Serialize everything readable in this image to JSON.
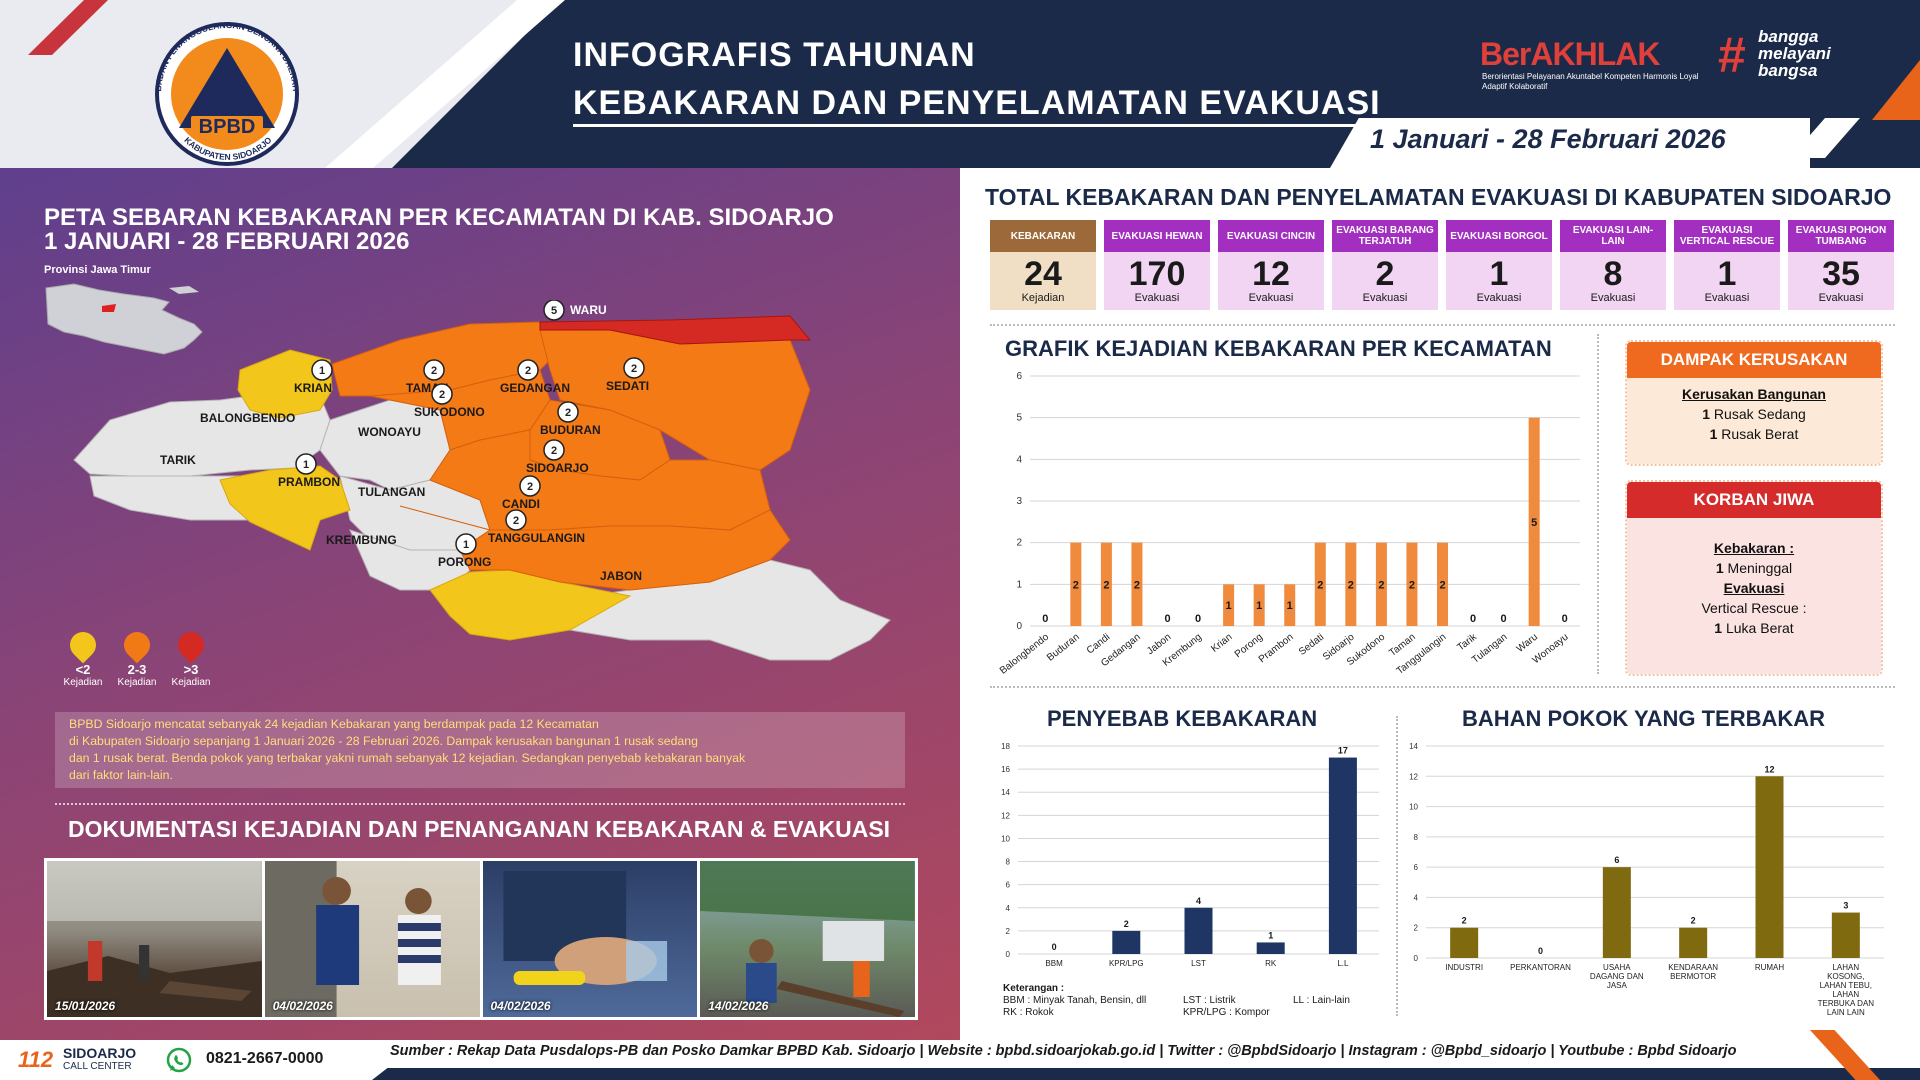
{
  "header": {
    "title_line1": "INFOGRAFIS TAHUNAN",
    "title_line2": "KEBAKARAN DAN PENYELAMATAN EVAKUASI",
    "period": "1 Januari - 28 Februari 2026",
    "logo_text": "BPBD",
    "logo_ring_top": "BADAN PENANGGULANGAN BENCANA DAERAH",
    "logo_ring_bottom": "KABUPATEN SIDOARJO",
    "berakhlak": "BerAKHLAK",
    "berakhlak_sub": "Berorientasi Pelayanan Akuntabel Kompeten Harmonis Loyal Adaptif Kolaboratif",
    "bangga_lines": [
      "bangga",
      "melayani",
      "bangsa"
    ]
  },
  "map_section": {
    "title_line1": "PETA SEBARAN KEBAKARAN PER KECAMATAN DI KAB. SIDOARJO",
    "title_line2": "1 JANUARI - 28 FEBRUARI 2026",
    "province_label": "Provinsi Jawa Timur",
    "legend": [
      {
        "label": "<2",
        "unit": "Kejadian",
        "color": "#f4c61b"
      },
      {
        "label": "2-3",
        "unit": "Kejadian",
        "color": "#f27a16"
      },
      {
        "label": ">3",
        "unit": "Kejadian",
        "color": "#d42a23"
      }
    ],
    "districts": [
      {
        "name": "WARU",
        "count": 5
      },
      {
        "name": "TAMAN",
        "count": 2
      },
      {
        "name": "SEDATI",
        "count": 2
      },
      {
        "name": "GEDANGAN",
        "count": 2
      },
      {
        "name": "SUKODONO",
        "count": 2
      },
      {
        "name": "KRIAN",
        "count": 1
      },
      {
        "name": "BALONGBENDO",
        "count": null
      },
      {
        "name": "WONOAYU",
        "count": null
      },
      {
        "name": "BUDURAN",
        "count": 2
      },
      {
        "name": "TARIK",
        "count": null
      },
      {
        "name": "PRAMBON",
        "count": 1
      },
      {
        "name": "SIDOARJO",
        "count": 2
      },
      {
        "name": "TULANGAN",
        "count": null
      },
      {
        "name": "CANDI",
        "count": 2
      },
      {
        "name": "TANGGULANGIN",
        "count": 2
      },
      {
        "name": "KREMBUNG",
        "count": null
      },
      {
        "name": "PORONG",
        "count": 1
      },
      {
        "name": "JABON",
        "count": null
      }
    ],
    "description": [
      "BPBD Sidoarjo mencatat sebanyak 24 kejadian Kebakaran yang berdampak pada 12 Kecamatan",
      "di Kabupaten Sidoarjo sepanjang 1 Januari 2026 - 28 Februari 2026. Dampak kerusakan bangunan 1 rusak sedang",
      "dan 1 rusak berat. Benda pokok yang terbakar yakni rumah sebanyak 12 kejadian. Sedangkan penyebab kebakaran banyak",
      "dari faktor lain-lain."
    ]
  },
  "documentation": {
    "title": "DOKUMENTASI KEJADIAN DAN PENANGANAN KEBAKARAN & EVAKUASI",
    "photos": [
      {
        "date": "15/01/2026"
      },
      {
        "date": "04/02/2026"
      },
      {
        "date": "04/02/2026"
      },
      {
        "date": "14/02/2026"
      }
    ]
  },
  "totals": {
    "title": "TOTAL KEBAKARAN DAN PENYELAMATAN EVAKUASI  DI KABUPATEN SIDOARJO",
    "cards": [
      {
        "label": "KEBAKARAN",
        "value": "24",
        "unit": "Kejadian",
        "kind": "kebakaran"
      },
      {
        "label": "EVAKUASI HEWAN",
        "value": "170",
        "unit": "Evakuasi",
        "kind": "evakuasi"
      },
      {
        "label": "EVAKUASI CINCIN",
        "value": "12",
        "unit": "Evakuasi",
        "kind": "evakuasi"
      },
      {
        "label": "EVAKUASI BARANG TERJATUH",
        "value": "2",
        "unit": "Evakuasi",
        "kind": "evakuasi"
      },
      {
        "label": "EVAKUASI BORGOL",
        "value": "1",
        "unit": "Evakuasi",
        "kind": "evakuasi"
      },
      {
        "label": "EVAKUASI LAIN-LAIN",
        "value": "8",
        "unit": "Evakuasi",
        "kind": "evakuasi"
      },
      {
        "label": "EVAKUASI VERTICAL RESCUE",
        "value": "1",
        "unit": "Evakuasi",
        "kind": "evakuasi"
      },
      {
        "label": "EVAKUASI POHON TUMBANG",
        "value": "35",
        "unit": "Evakuasi",
        "kind": "evakuasi"
      }
    ]
  },
  "impact": {
    "dampak_title": "DAMPAK KERUSAKAN",
    "dampak_heading": "Kerusakan Bangunan",
    "dampak_lines": [
      {
        "num": "1",
        "text": " Rusak Sedang"
      },
      {
        "num": "1",
        "text": " Rusak Berat"
      }
    ],
    "korban_title": "KORBAN JIWA",
    "korban_heading1": "Kebakaran :",
    "korban_line1_num": "1",
    "korban_line1_text": " Meninggal",
    "korban_heading2": "Evakuasi",
    "korban_line2": "Vertical Rescue :",
    "korban_line3_num": "1",
    "korban_line3_text": " Luka Berat"
  },
  "charts_text": {
    "grafik_title": "GRAFIK KEJADIAN KEBAKARAN PER KECAMATAN",
    "penyebab_title": "PENYEBAB KEBAKARAN",
    "bahan_title": "BAHAN POKOK YANG TERBAKAR",
    "keterangan_title": "Keterangan :",
    "keterangan": [
      {
        "code": "BBM",
        "desc": ": Minyak Tanah, Bensin, dll"
      },
      {
        "code": "RK",
        "desc": ": Rokok"
      },
      {
        "code": "LST",
        "desc": ": Listrik"
      },
      {
        "code": "KPR/LPG",
        "desc": ": Kompor"
      },
      {
        "code": "LL",
        "desc": ": Lain-lain"
      }
    ]
  },
  "chart_data": [
    {
      "type": "bar",
      "title": "GRAFIK KEJADIAN KEBAKARAN PER KECAMATAN",
      "categories": [
        "Balongbendo",
        "Buduran",
        "Candi",
        "Gedangan",
        "Jabon",
        "Krembung",
        "Krian",
        "Porong",
        "Prambon",
        "Sedati",
        "Sidoarjo",
        "Sukodono",
        "Taman",
        "Tanggulangin",
        "Tarik",
        "Tulangan",
        "Waru",
        "Wonoayu"
      ],
      "values": [
        0,
        2,
        2,
        2,
        0,
        0,
        1,
        1,
        1,
        2,
        2,
        2,
        2,
        2,
        0,
        0,
        5,
        0
      ],
      "ylim": [
        0,
        6
      ],
      "yticks": [
        0,
        1,
        2,
        3,
        4,
        5,
        6
      ],
      "color": "#f08a3c",
      "grid": true
    },
    {
      "type": "bar",
      "title": "PENYEBAB KEBAKARAN",
      "categories": [
        "BBM",
        "KPR/LPG",
        "LST",
        "RK",
        "L.L"
      ],
      "values": [
        0,
        2,
        4,
        1,
        17
      ],
      "ylim": [
        0,
        18
      ],
      "yticks": [
        0,
        2,
        4,
        6,
        8,
        10,
        12,
        14,
        16,
        18
      ],
      "color": "#1f3564",
      "grid": true
    },
    {
      "type": "bar",
      "title": "BAHAN POKOK YANG TERBAKAR",
      "categories": [
        [
          "INDUSTRI"
        ],
        [
          "PERKANTORAN"
        ],
        [
          "USAHA",
          "DAGANG DAN",
          "JASA"
        ],
        [
          "KENDARAAN",
          "BERMOTOR"
        ],
        [
          "RUMAH"
        ],
        [
          "LAHAN",
          "KOSONG,",
          "LAHAN TEBU,",
          "LAHAN",
          "TERBUKA DAN",
          "LAIN LAIN"
        ]
      ],
      "values": [
        2,
        0,
        6,
        2,
        12,
        3
      ],
      "ylim": [
        0,
        14
      ],
      "yticks": [
        0,
        2,
        4,
        6,
        8,
        10,
        12,
        14
      ],
      "color": "#7f6a10",
      "grid": true
    }
  ],
  "footer": {
    "cc_number": "112",
    "cc_name": "SIDOARJO",
    "cc_sub": "CALL CENTER",
    "wa_number": "0821-2667-0000",
    "source": "Sumber : Rekap Data Pusdalops-PB dan Posko Damkar BPBD Kab. Sidoarjo | Website : bpbd.sidoarjokab.go.id | Twitter : @BpbdSidoarjo | Instagram : @Bpbd_sidoarjo | Youtbube : Bpbd Sidoarjo"
  }
}
